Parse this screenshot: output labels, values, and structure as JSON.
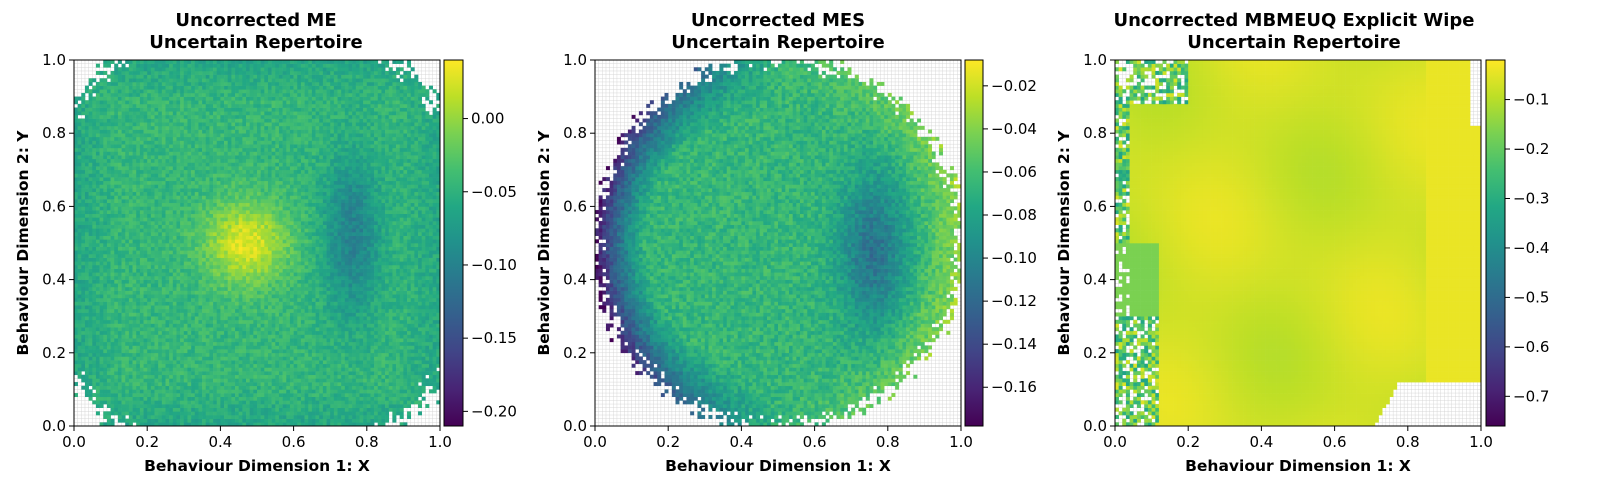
{
  "chart_data": [
    {
      "type": "heatmap",
      "title_line1": "Uncorrected ME",
      "title_line2": "Uncertain Repertoire",
      "xlabel": "Behaviour Dimension 1: X",
      "ylabel": "Behaviour Dimension 2: Y",
      "xlim": [
        0.0,
        1.0
      ],
      "ylim": [
        0.0,
        1.0
      ],
      "xticks": [
        "0.0",
        "0.2",
        "0.4",
        "0.6",
        "0.8",
        "1.0"
      ],
      "yticks": [
        "0.0",
        "0.2",
        "0.4",
        "0.6",
        "0.8",
        "1.0"
      ],
      "colormap": "viridis",
      "colorbar_range": [
        -0.21,
        0.04
      ],
      "colorbar_ticks": [
        0.0,
        -0.05,
        -0.1,
        -0.15,
        -0.2
      ],
      "colorbar_labels": [
        "0.00",
        "−0.05",
        "−0.10",
        "−0.15",
        "−0.20"
      ],
      "grid": true,
      "pattern": "Filled square with ragged empty corners; bright yellow-green blob near (0.47, 0.50); darker teal band around (0.75, 0.50); darker edges on left and corners."
    },
    {
      "type": "heatmap",
      "title_line1": "Uncorrected MES",
      "title_line2": "Uncertain Repertoire",
      "xlabel": "Behaviour Dimension 1: X",
      "ylabel": "Behaviour Dimension 2: Y",
      "xlim": [
        0.0,
        1.0
      ],
      "ylim": [
        0.0,
        1.0
      ],
      "xticks": [
        "0.0",
        "0.2",
        "0.4",
        "0.6",
        "0.8",
        "1.0"
      ],
      "yticks": [
        "0.0",
        "0.2",
        "0.4",
        "0.6",
        "0.8",
        "1.0"
      ],
      "colormap": "viridis",
      "colorbar_range": [
        -0.178,
        -0.008
      ],
      "colorbar_ticks": [
        -0.02,
        -0.04,
        -0.06,
        -0.08,
        -0.1,
        -0.12,
        -0.14,
        -0.16
      ],
      "colorbar_labels": [
        "−0.02",
        "−0.04",
        "−0.06",
        "−0.08",
        "−0.10",
        "−0.12",
        "−0.14",
        "−0.16"
      ],
      "grid": true,
      "pattern": "Circular filled region centered near (0.5, 0.5), radius about 0.5; dark purple on the left rim; teal patch near (0.75, 0.5); yellow on the right rim."
    },
    {
      "type": "heatmap",
      "title_line1": "Uncorrected MBMEUQ Explicit Wipe",
      "title_line2": "Uncertain Repertoire",
      "xlabel": "Behaviour Dimension 1: X",
      "ylabel": "",
      "ylabel_clipped": "Behaviour Dimension 2: Y",
      "xlim": [
        0.0,
        1.0
      ],
      "ylim": [
        0.0,
        1.0
      ],
      "xticks": [
        "0.0",
        "0.2",
        "0.4",
        "0.6",
        "0.8",
        "1.0"
      ],
      "yticks": [
        "0.0",
        "0.2",
        "0.4",
        "0.6",
        "0.8",
        "1.0"
      ],
      "colormap": "viridis",
      "colorbar_range": [
        -0.76,
        -0.02
      ],
      "colorbar_ticks": [
        -0.1,
        -0.2,
        -0.3,
        -0.4,
        -0.5,
        -0.6,
        -0.7
      ],
      "colorbar_labels": [
        "−0.1",
        "−0.2",
        "−0.3",
        "−0.4",
        "−0.5",
        "−0.6",
        "−0.7"
      ],
      "grid": true,
      "pattern": "Almost fully yellow with faint triangular facets; noisy darker cells in the top-left, left strip and bottom-left; small empty notches in the corners."
    }
  ]
}
